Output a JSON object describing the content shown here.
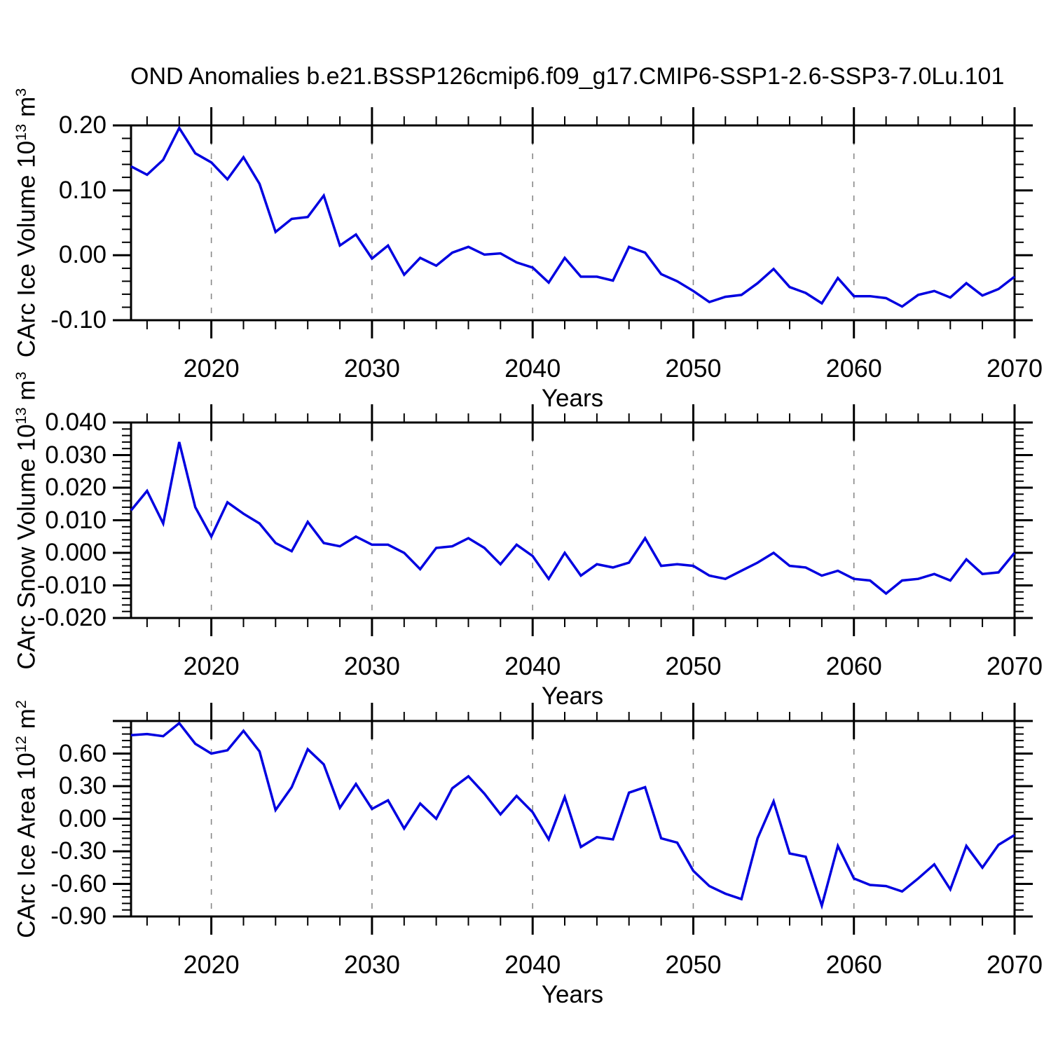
{
  "title": "OND Anomalies b.e21.BSSP126cmip6.f09_g17.CMIP6-SSP1-2.6-SSP3-7.0Lu.101",
  "chart_data": {
    "type": "line",
    "xlabel": "Years",
    "xlim": [
      2015,
      2070
    ],
    "x": [
      2015,
      2016,
      2017,
      2018,
      2019,
      2020,
      2021,
      2022,
      2023,
      2024,
      2025,
      2026,
      2027,
      2028,
      2029,
      2030,
      2031,
      2032,
      2033,
      2034,
      2035,
      2036,
      2037,
      2038,
      2039,
      2040,
      2041,
      2042,
      2043,
      2044,
      2045,
      2046,
      2047,
      2048,
      2049,
      2050,
      2051,
      2052,
      2053,
      2054,
      2055,
      2056,
      2057,
      2058,
      2059,
      2060,
      2061,
      2062,
      2063,
      2064,
      2065,
      2066,
      2067,
      2068,
      2069,
      2070
    ],
    "xticks_labeled": [
      2020,
      2030,
      2040,
      2050,
      2060,
      2070
    ],
    "xtick_minor_step": 2,
    "gridlines_x": [
      2020,
      2030,
      2040,
      2050,
      2060
    ],
    "line_color": "#0000e0",
    "grid_color": "#888888",
    "panels": [
      {
        "name": "carc-ice-volume",
        "ylabel_prefix": "CArc Ice Volume 10",
        "ylabel_exp": "13",
        "ylabel_unit": " m",
        "ylabel_unit_exp": "3",
        "ylim": [
          -0.1,
          0.2
        ],
        "ytick_values": [
          0.2,
          0.1,
          0.0,
          -0.1
        ],
        "ytick_labels": [
          "0.20",
          "0.10",
          "0.00",
          "-0.10"
        ],
        "ytick_minor_step": 0.02,
        "values": [
          0.137,
          0.124,
          0.147,
          0.196,
          0.157,
          0.143,
          0.117,
          0.151,
          0.11,
          0.036,
          0.056,
          0.059,
          0.092,
          0.015,
          0.032,
          -0.005,
          0.015,
          -0.03,
          -0.004,
          -0.016,
          0.004,
          0.013,
          0.001,
          0.003,
          -0.011,
          -0.019,
          -0.042,
          -0.004,
          -0.033,
          -0.033,
          -0.039,
          0.013,
          0.004,
          -0.029,
          -0.04,
          -0.055,
          -0.072,
          -0.064,
          -0.061,
          -0.043,
          -0.021,
          -0.049,
          -0.058,
          -0.074,
          -0.035,
          -0.063,
          -0.063,
          -0.066,
          -0.079,
          -0.061,
          -0.055,
          -0.065,
          -0.043,
          -0.062,
          -0.052,
          -0.033
        ]
      },
      {
        "name": "carc-snow-volume",
        "ylabel_prefix": "CArc Snow Volume 10",
        "ylabel_exp": "13",
        "ylabel_unit": " m",
        "ylabel_unit_exp": "3",
        "ylim": [
          -0.02,
          0.04
        ],
        "ytick_values": [
          0.04,
          0.03,
          0.02,
          0.01,
          0.0,
          -0.01,
          -0.02
        ],
        "ytick_labels": [
          "0.040",
          "0.030",
          "0.020",
          "0.010",
          "0.000",
          "-0.010",
          "-0.020"
        ],
        "ytick_minor_step": 0.002,
        "values": [
          0.013,
          0.019,
          0.009,
          0.034,
          0.014,
          0.005,
          0.0155,
          0.012,
          0.009,
          0.003,
          0.0005,
          0.0095,
          0.003,
          0.002,
          0.005,
          0.0025,
          0.0025,
          0.0,
          -0.005,
          0.0015,
          0.002,
          0.0045,
          0.0015,
          -0.0035,
          0.0025,
          -0.001,
          -0.008,
          0.0,
          -0.007,
          -0.0035,
          -0.0045,
          -0.003,
          0.0045,
          -0.004,
          -0.0035,
          -0.004,
          -0.007,
          -0.008,
          -0.0055,
          -0.003,
          0.0,
          -0.004,
          -0.0045,
          -0.007,
          -0.0055,
          -0.008,
          -0.0085,
          -0.0125,
          -0.0085,
          -0.008,
          -0.0065,
          -0.0085,
          -0.002,
          -0.0065,
          -0.006,
          0.0
        ]
      },
      {
        "name": "carc-ice-area",
        "ylabel_prefix": "CArc Ice Area 10",
        "ylabel_exp": "12",
        "ylabel_unit": " m",
        "ylabel_unit_exp": "2",
        "ylim": [
          -0.9,
          0.9
        ],
        "ytick_values": [
          0.9,
          0.6,
          0.3,
          0.0,
          -0.3,
          -0.6,
          -0.9
        ],
        "ytick_labels": [
          "",
          "0.60",
          "0.30",
          "0.00",
          "-0.30",
          "-0.60",
          "-0.90"
        ],
        "ytick_minor_step": 0.06,
        "values": [
          0.77,
          0.78,
          0.76,
          0.88,
          0.69,
          0.6,
          0.63,
          0.81,
          0.62,
          0.08,
          0.29,
          0.64,
          0.5,
          0.1,
          0.32,
          0.09,
          0.17,
          -0.09,
          0.14,
          0.0,
          0.28,
          0.39,
          0.23,
          0.04,
          0.21,
          0.06,
          -0.19,
          0.2,
          -0.26,
          -0.17,
          -0.19,
          0.24,
          0.29,
          -0.18,
          -0.22,
          -0.48,
          -0.62,
          -0.69,
          -0.74,
          -0.18,
          0.16,
          -0.32,
          -0.35,
          -0.8,
          -0.25,
          -0.55,
          -0.61,
          -0.62,
          -0.67,
          -0.55,
          -0.42,
          -0.65,
          -0.25,
          -0.45,
          -0.24,
          -0.15
        ]
      }
    ]
  }
}
